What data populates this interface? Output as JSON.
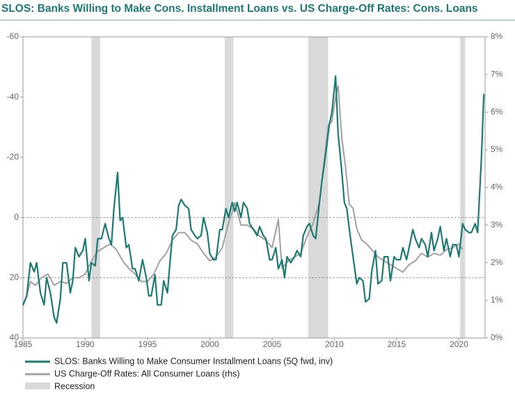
{
  "chart_data": {
    "type": "line",
    "title": "SLOS: Banks Willing to Make Cons. Installment Loans vs. US Charge-Off Rates: Cons. Loans",
    "xlim": [
      1985,
      2022.1
    ],
    "xticks": [
      1985,
      1990,
      1995,
      2000,
      2005,
      2010,
      2015,
      2020
    ],
    "ylim": [
      -60,
      40
    ],
    "y_inverted": true,
    "yticks": [
      -60,
      -40,
      -20,
      0,
      20,
      40
    ],
    "y2lim": [
      0,
      8
    ],
    "y2ticks": [
      {
        "value": 0,
        "label": "0%"
      },
      {
        "value": 1,
        "label": "1%"
      },
      {
        "value": 2,
        "label": "2%"
      },
      {
        "value": 3,
        "label": "3%"
      },
      {
        "value": 4,
        "label": "4%"
      },
      {
        "value": 5,
        "label": "5%"
      },
      {
        "value": 6,
        "label": "6%"
      },
      {
        "value": 7,
        "label": "7%"
      },
      {
        "value": 8,
        "label": "8%"
      }
    ],
    "reference_lines": [
      0,
      20
    ],
    "recession_label": "Recession",
    "recession_color": "#d9d9d9",
    "recessions": [
      [
        1990.5,
        1991.2
      ],
      [
        2001.2,
        2001.9
      ],
      [
        2007.9,
        2009.5
      ],
      [
        2020.1,
        2020.5
      ]
    ],
    "series": [
      {
        "name": "SLOS: Banks Willing to Make Consumer Installment Loans (5Q fwd, inv)",
        "color": "#1a7a72",
        "x": [
          1985.0,
          1985.3,
          1985.6,
          1985.9,
          1986.1,
          1986.4,
          1986.7,
          1986.9,
          1987.2,
          1987.5,
          1987.7,
          1988.0,
          1988.2,
          1988.5,
          1988.8,
          1989.0,
          1989.2,
          1989.5,
          1989.8,
          1990.0,
          1990.3,
          1990.5,
          1990.8,
          1991.0,
          1991.3,
          1991.6,
          1991.9,
          1992.1,
          1992.3,
          1992.6,
          1992.8,
          1993.0,
          1993.3,
          1993.5,
          1993.8,
          1994.0,
          1994.3,
          1994.6,
          1994.9,
          1995.1,
          1995.3,
          1995.6,
          1995.8,
          1996.1,
          1996.3,
          1996.6,
          1996.8,
          1997.0,
          1997.3,
          1997.5,
          1997.7,
          1998.0,
          1998.3,
          1998.5,
          1998.8,
          1999.0,
          1999.3,
          1999.5,
          1999.8,
          2000.0,
          2000.3,
          2000.5,
          2000.8,
          2001.0,
          2001.3,
          2001.5,
          2001.8,
          2002.0,
          2002.2,
          2002.5,
          2002.7,
          2003.0,
          2003.2,
          2003.5,
          2003.8,
          2004.0,
          2004.3,
          2004.5,
          2004.8,
          2005.0,
          2005.3,
          2005.5,
          2005.8,
          2006.0,
          2006.2,
          2006.5,
          2006.8,
          2007.0,
          2007.3,
          2007.5,
          2007.8,
          2008.0,
          2008.3,
          2008.5,
          2008.8,
          2009.0,
          2009.3,
          2009.6,
          2009.8,
          2010.1,
          2010.3,
          2010.6,
          2010.8,
          2011.0,
          2011.3,
          2011.5,
          2011.8,
          2012.0,
          2012.3,
          2012.5,
          2012.8,
          2013.0,
          2013.3,
          2013.5,
          2013.8,
          2014.0,
          2014.3,
          2014.5,
          2014.8,
          2015.0,
          2015.3,
          2015.5,
          2015.8,
          2016.0,
          2016.3,
          2016.5,
          2016.8,
          2017.0,
          2017.3,
          2017.5,
          2017.8,
          2018.0,
          2018.3,
          2018.5,
          2018.8,
          2019.0,
          2019.3,
          2019.5,
          2019.8,
          2020.0,
          2020.3,
          2020.5,
          2020.8,
          2021.0,
          2021.3,
          2021.5,
          2021.8,
          2022.0
        ],
        "values": [
          29,
          26,
          15,
          18,
          15,
          25,
          29,
          20,
          25,
          33,
          35,
          27,
          15,
          15,
          25,
          21,
          10,
          13,
          11,
          7,
          21,
          15,
          16,
          7,
          7,
          2,
          7,
          9,
          -3,
          -15,
          1,
          0,
          10,
          9,
          17,
          17,
          21,
          14,
          20,
          26,
          26,
          19,
          29,
          29,
          21,
          25,
          15,
          6,
          4,
          -4,
          -6,
          -4,
          -3,
          4,
          6,
          7,
          6,
          0,
          5,
          12,
          14,
          14,
          4,
          4,
          -3,
          0,
          -5,
          -2,
          -5,
          0,
          -5,
          -3,
          2,
          4,
          6,
          3,
          6,
          7,
          14,
          14,
          10,
          17,
          14,
          20,
          13,
          15,
          13,
          11,
          13,
          6,
          3,
          2,
          6,
          7,
          -5,
          -12,
          -21,
          -31,
          -35,
          -47,
          -28,
          -15,
          -5,
          -3,
          7,
          13,
          22,
          20,
          21,
          28,
          27,
          18,
          11,
          22,
          21,
          13,
          13,
          21,
          13,
          14,
          14,
          10,
          14,
          10,
          4,
          7,
          10,
          7,
          9,
          13,
          5,
          11,
          7,
          3,
          11,
          7,
          13,
          9,
          9,
          13,
          2,
          4,
          5,
          5,
          2,
          5,
          -19,
          -41
        ]
      },
      {
        "name": "US Charge-Off Rates: All Consumer Loans (rhs)",
        "color": "#a0a0a0",
        "axis": "y2",
        "x": [
          1985.0,
          1985.3,
          1985.6,
          1986.0,
          1986.5,
          1987.0,
          1987.5,
          1988.0,
          1988.5,
          1989.0,
          1989.5,
          1990.0,
          1990.5,
          1991.0,
          1991.5,
          1992.0,
          1992.5,
          1993.0,
          1993.5,
          1994.0,
          1994.5,
          1995.0,
          1995.5,
          1996.0,
          1996.5,
          1997.0,
          1997.5,
          1998.0,
          1998.5,
          1999.0,
          1999.5,
          2000.0,
          2000.5,
          2001.0,
          2001.5,
          2001.8,
          2002.0,
          2002.5,
          2003.0,
          2003.5,
          2004.0,
          2004.5,
          2005.0,
          2005.5,
          2005.8,
          2006.3,
          2006.8,
          2007.3,
          2007.8,
          2008.3,
          2008.8,
          2009.2,
          2009.5,
          2009.8,
          2010.1,
          2010.3,
          2010.6,
          2010.9,
          2011.2,
          2011.5,
          2011.8,
          2012.2,
          2012.6,
          2013.0,
          2013.5,
          2014.0,
          2014.5,
          2015.0,
          2015.5,
          2016.0,
          2016.5,
          2017.0,
          2017.5,
          2018.0,
          2018.5,
          2019.0,
          2019.5,
          2020.0,
          2020.3
        ],
        "values": [
          0.85,
          1.13,
          1.5,
          1.4,
          1.6,
          1.7,
          1.4,
          1.5,
          1.45,
          1.6,
          1.6,
          1.7,
          2.05,
          2.3,
          2.4,
          2.5,
          2.35,
          2.05,
          1.85,
          1.7,
          1.5,
          1.5,
          1.7,
          2.05,
          2.25,
          2.6,
          2.8,
          2.8,
          2.6,
          2.5,
          2.25,
          2.05,
          2.15,
          2.4,
          3.05,
          3.35,
          3.6,
          3.0,
          3.0,
          2.9,
          2.7,
          2.6,
          2.4,
          3.15,
          1.85,
          2.05,
          2.15,
          2.25,
          2.7,
          3.05,
          3.6,
          4.75,
          5.65,
          5.75,
          6.4,
          6.7,
          5.3,
          4.55,
          3.55,
          3.45,
          2.9,
          2.6,
          2.5,
          2.35,
          2.15,
          2.05,
          1.95,
          1.85,
          1.75,
          1.95,
          2.05,
          2.25,
          2.15,
          2.25,
          2.2,
          2.35,
          2.4,
          2.5,
          2.35
        ]
      }
    ]
  }
}
